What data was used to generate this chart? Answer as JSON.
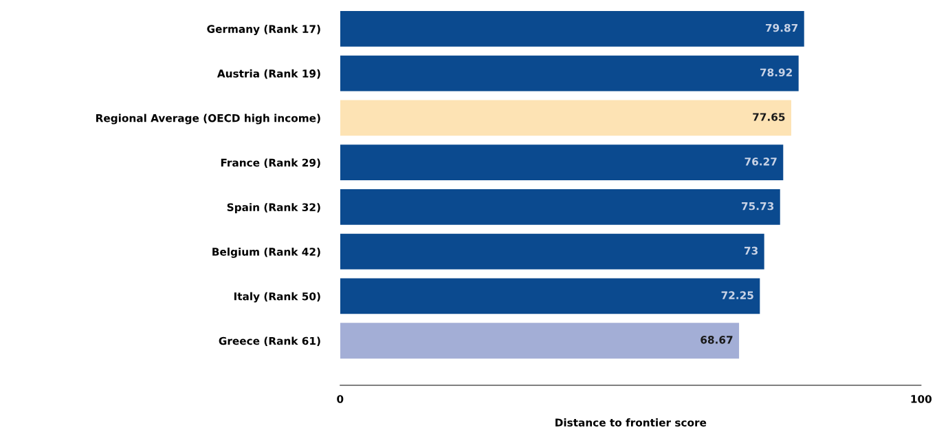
{
  "chart_data": {
    "type": "bar",
    "orientation": "horizontal",
    "xlabel": "Distance to frontier score",
    "categories": [
      "Germany (Rank 17)",
      "Austria (Rank 19)",
      "Regional Average (OECD high income)",
      "France (Rank 29)",
      "Spain (Rank 32)",
      "Belgium (Rank 42)",
      "Italy (Rank 50)",
      "Greece (Rank 61)"
    ],
    "values": [
      79.87,
      78.92,
      77.65,
      76.27,
      75.73,
      73,
      72.25,
      68.67
    ],
    "colors": [
      "#0b4a8f",
      "#0b4a8f",
      "#fde3b4",
      "#0b4a8f",
      "#0b4a8f",
      "#0b4a8f",
      "#0b4a8f",
      "#a3aed6"
    ],
    "xlim": [
      0,
      100
    ],
    "xticks": [
      0,
      100
    ],
    "data_labels": true,
    "grid": false,
    "legend": false
  }
}
